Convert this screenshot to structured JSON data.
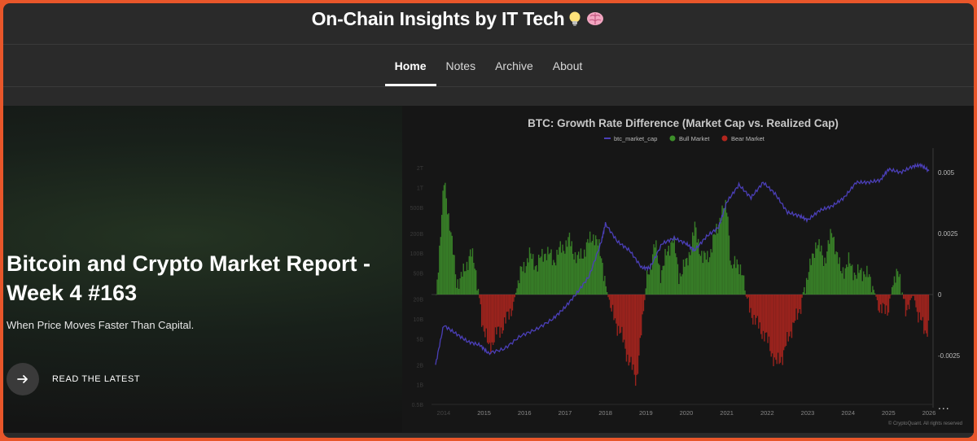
{
  "site": {
    "title": "On-Chain Insights by IT Tech",
    "title_emojis": [
      "lightbulb-icon",
      "brain-icon"
    ]
  },
  "nav": {
    "items": [
      {
        "label": "Home",
        "active": true
      },
      {
        "label": "Notes",
        "active": false
      },
      {
        "label": "Archive",
        "active": false
      },
      {
        "label": "About",
        "active": false
      }
    ]
  },
  "hero": {
    "title": "Bitcoin and Crypto Market Report - Week 4 #163",
    "subtitle": "When Price Moves Faster Than Capital.",
    "cta_label": "READ THE LATEST",
    "more_label": "..."
  },
  "colors": {
    "accent_border": "#e8562a",
    "bull": "#3d8f2a",
    "bear": "#b3261e",
    "btc_line": "#4b3fb8"
  },
  "chart_data": {
    "type": "area",
    "title": "BTC: Growth Rate Difference (Market Cap vs. Realized Cap)",
    "legend": [
      "btc_market_cap",
      "Bull Market",
      "Bear Market"
    ],
    "legend_position": "top-center",
    "credit": "© CryptoQuant. All rights reserved",
    "x_ticks": [
      "2014",
      "2015",
      "2016",
      "2017",
      "2018",
      "2019",
      "2020",
      "2021",
      "2022",
      "2023",
      "2024",
      "2025",
      "2026"
    ],
    "y_right_ticks": [
      "0.005",
      "0.0025",
      "0",
      "-0.0025"
    ],
    "y_left_ticks": [
      "2T",
      "1T",
      "500B",
      "200B",
      "100B",
      "50B",
      "20B",
      "10B",
      "5B",
      "2B",
      "1B",
      "0.5B"
    ],
    "ylim_right": [
      -0.0045,
      0.0058
    ],
    "growth_diff": {
      "x": [
        2013.8,
        2014.0,
        2014.15,
        2014.3,
        2014.5,
        2014.65,
        2014.8,
        2014.95,
        2015.1,
        2015.3,
        2015.5,
        2015.7,
        2015.9,
        2016.1,
        2016.3,
        2016.5,
        2016.7,
        2016.9,
        2017.1,
        2017.3,
        2017.5,
        2017.7,
        2017.9,
        2018.0,
        2018.15,
        2018.35,
        2018.55,
        2018.75,
        2018.9,
        2019.0,
        2019.1,
        2019.2,
        2019.35,
        2019.5,
        2019.65,
        2019.8,
        2020.0,
        2020.2,
        2020.4,
        2020.6,
        2020.8,
        2021.0,
        2021.1,
        2021.25,
        2021.4,
        2021.5,
        2021.7,
        2021.9,
        2022.05,
        2022.2,
        2022.4,
        2022.6,
        2022.75,
        2022.9,
        2023.05,
        2023.2,
        2023.4,
        2023.6,
        2023.8,
        2024.0,
        2024.2,
        2024.4,
        2024.6,
        2024.8,
        2025.0,
        2025.1,
        2025.25,
        2025.4,
        2025.6,
        2025.75,
        2025.9,
        2026.0
      ],
      "y": [
        0,
        0.0046,
        0.0028,
        0.0005,
        0.0009,
        0.0018,
        0.0008,
        -0.0012,
        -0.0022,
        -0.0016,
        -0.0012,
        -0.0004,
        0.0009,
        0.0016,
        0.0012,
        0.0018,
        0.0014,
        0.0019,
        0.0022,
        0.0014,
        0.0019,
        0.0025,
        0.0015,
        0.0003,
        -0.0008,
        -0.0015,
        -0.0026,
        -0.0035,
        -0.0012,
        0.0005,
        0.0012,
        0.0021,
        0.0009,
        0.0016,
        0.0024,
        0.0008,
        0.0013,
        0.0027,
        0.0014,
        0.0018,
        0.0031,
        0.0037,
        0.0009,
        0.0015,
        0.0005,
        -0.0004,
        -0.0011,
        -0.0016,
        -0.0021,
        -0.0029,
        -0.0024,
        -0.0013,
        -0.0009,
        0.0003,
        0.0011,
        0.0022,
        0.0014,
        0.0026,
        0.0009,
        0.0013,
        0.0008,
        0.001,
        0.0003,
        -0.0007,
        -0.0005,
        0.0006,
        0.0008,
        -0.0006,
        0,
        -0.001,
        -0.0015,
        -0.0012
      ]
    },
    "btc_market_cap": {
      "x": [
        2013.8,
        2014.0,
        2014.3,
        2014.6,
        2014.9,
        2015.1,
        2015.5,
        2015.9,
        2016.3,
        2016.7,
        2017.0,
        2017.3,
        2017.6,
        2017.9,
        2018.0,
        2018.3,
        2018.6,
        2018.9,
        2019.1,
        2019.4,
        2019.7,
        2020.0,
        2020.2,
        2020.5,
        2020.8,
        2021.0,
        2021.3,
        2021.6,
        2021.9,
        2022.2,
        2022.5,
        2022.8,
        2023.0,
        2023.3,
        2023.6,
        2023.9,
        2024.2,
        2024.5,
        2024.8,
        2025.0,
        2025.3,
        2025.6,
        2025.8,
        2026.0
      ],
      "y": [
        "2B",
        "8B",
        "6B",
        "4.5B",
        "4B",
        "3B",
        "3.5B",
        "5.5B",
        "7B",
        "10B",
        "15B",
        "25B",
        "45B",
        "150B",
        "280B",
        "150B",
        "110B",
        "60B",
        "60B",
        "140B",
        "170B",
        "140B",
        "110B",
        "180B",
        "250B",
        "600B",
        "1.1T",
        "700B",
        "1.2T",
        "800B",
        "420B",
        "370B",
        "320B",
        "450B",
        "520B",
        "700B",
        "1.2T",
        "1.2T",
        "1.3T",
        "1.9T",
        "1.7T",
        "2.1T",
        "2.2T",
        "1.8T"
      ]
    }
  }
}
